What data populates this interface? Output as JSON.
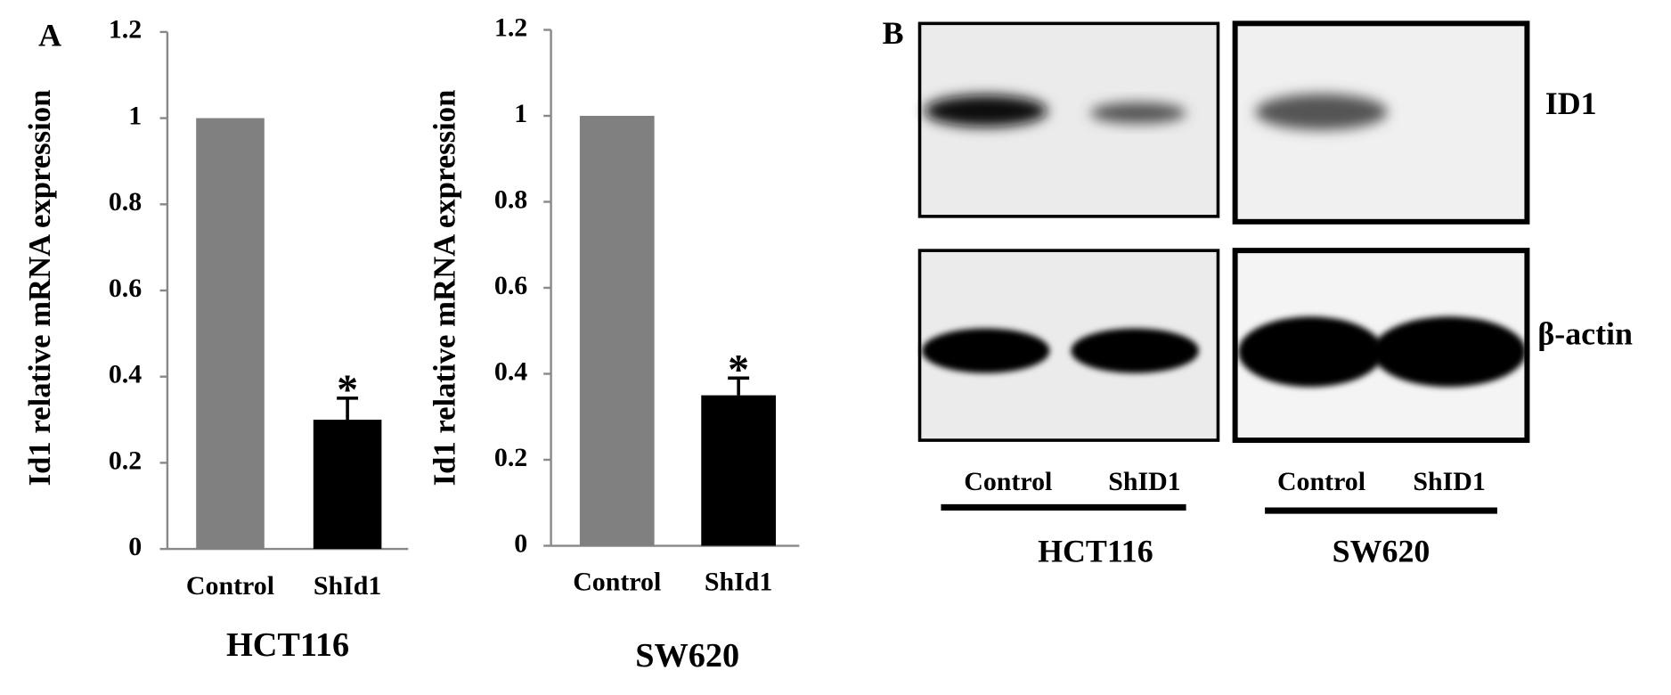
{
  "panel_a_label": "A",
  "chart_data": [
    {
      "type": "bar",
      "ylabel": "Id1 relative mRNA expression",
      "xlabel": "HCT116",
      "categories": [
        "Control",
        "ShId1"
      ],
      "values": [
        1,
        0.3
      ],
      "errors": [
        null,
        0.05
      ],
      "colors": [
        "#808080",
        "#000000"
      ],
      "annotation": "*",
      "ylim": [
        0,
        1.2
      ],
      "yticks": [
        0,
        0.2,
        0.4,
        0.6,
        0.8,
        1,
        1.2
      ]
    },
    {
      "type": "bar",
      "ylabel": "Id1 relative mRNA expression",
      "xlabel": "SW620",
      "categories": [
        "Control",
        "ShId1"
      ],
      "values": [
        1,
        0.35
      ],
      "errors": [
        null,
        0.04
      ],
      "colors": [
        "#808080",
        "#000000"
      ],
      "annotation": "*",
      "ylim": [
        0,
        1.2
      ],
      "yticks": [
        0,
        0.2,
        0.4,
        0.6,
        0.8,
        1,
        1.2
      ]
    }
  ],
  "panel_b": {
    "label": "B",
    "rows": [
      "ID1",
      "β-actin"
    ],
    "groups": [
      {
        "name": "HCT116",
        "lanes": [
          "Control",
          "ShID1"
        ]
      },
      {
        "name": "SW620",
        "lanes": [
          "Control",
          "ShID1"
        ]
      }
    ]
  }
}
